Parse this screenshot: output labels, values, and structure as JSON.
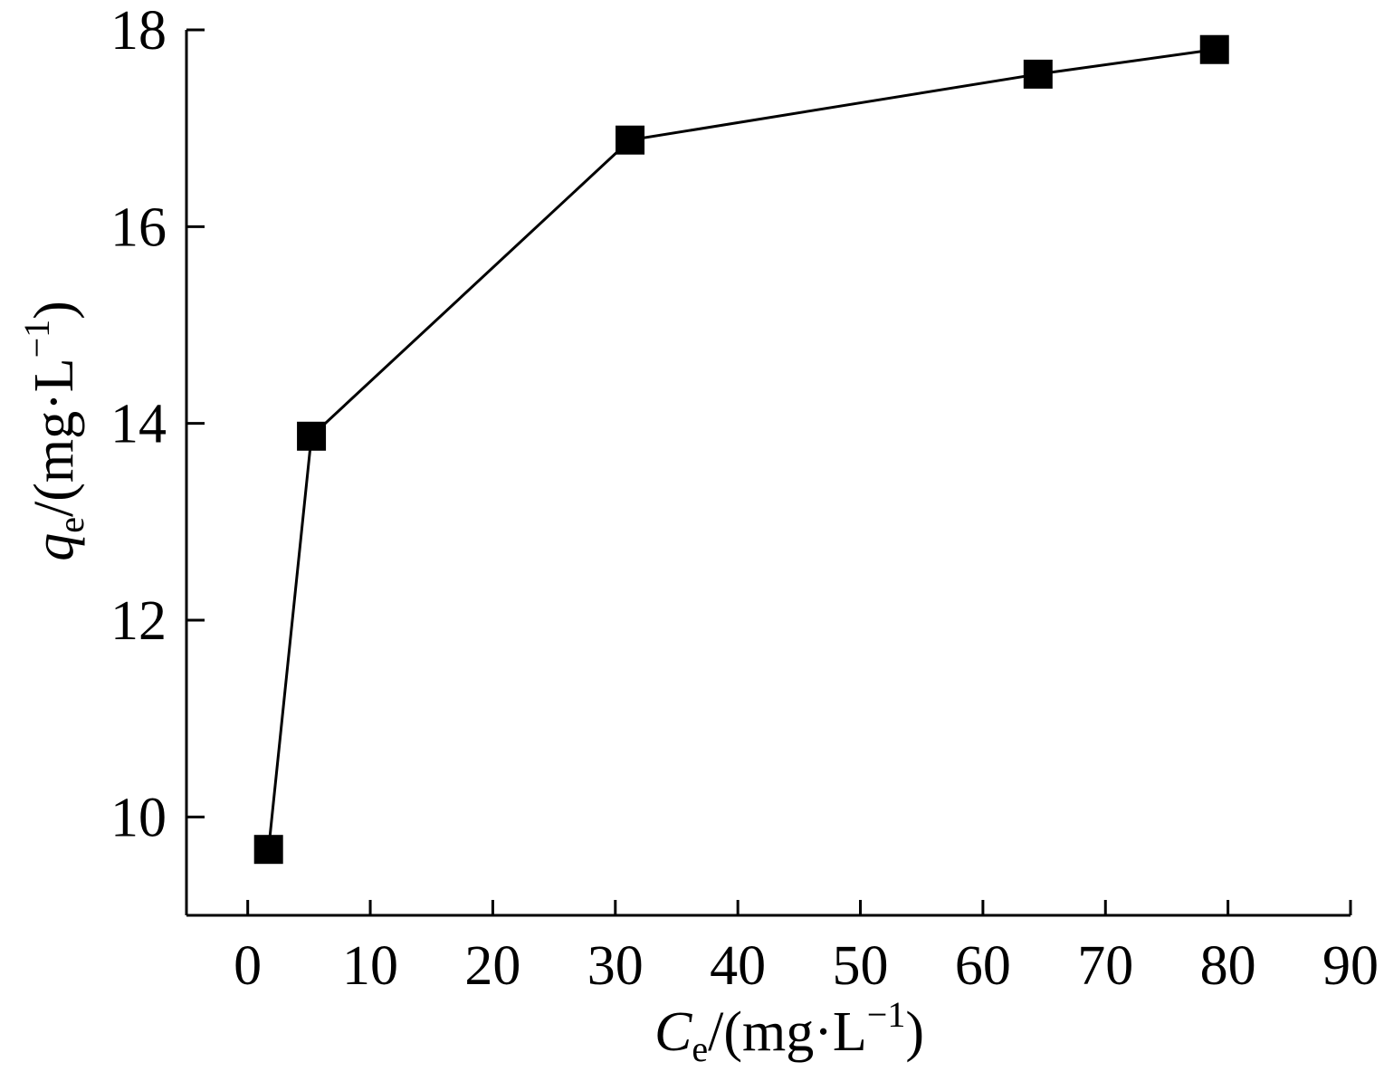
{
  "chart_data": {
    "type": "line",
    "xlabel": {
      "var": "C",
      "sub": "e",
      "unit_open": "/(mg·L",
      "sup": "−1",
      "unit_close": ")"
    },
    "ylabel": {
      "var": "q",
      "sub": "e",
      "unit_open": "/(mg·L",
      "sup": "−1",
      "unit_close": ")"
    },
    "xlim": [
      -5,
      90
    ],
    "ylim": [
      9,
      18
    ],
    "xticks": [
      0,
      10,
      20,
      30,
      40,
      50,
      60,
      70,
      80,
      90
    ],
    "xtick_labels": [
      "0",
      "10",
      "20",
      "30",
      "40",
      "50",
      "60",
      "70",
      "80",
      "90"
    ],
    "yticks": [
      10,
      12,
      14,
      16,
      18
    ],
    "ytick_labels": [
      "10",
      "12",
      "14",
      "16",
      "18"
    ],
    "grid": false,
    "series": [
      {
        "marker": "square",
        "color": "#000000",
        "x": [
          1.7,
          5.2,
          31.2,
          64.5,
          78.9
        ],
        "y": [
          9.67,
          13.87,
          16.88,
          17.55,
          17.8
        ]
      }
    ]
  }
}
